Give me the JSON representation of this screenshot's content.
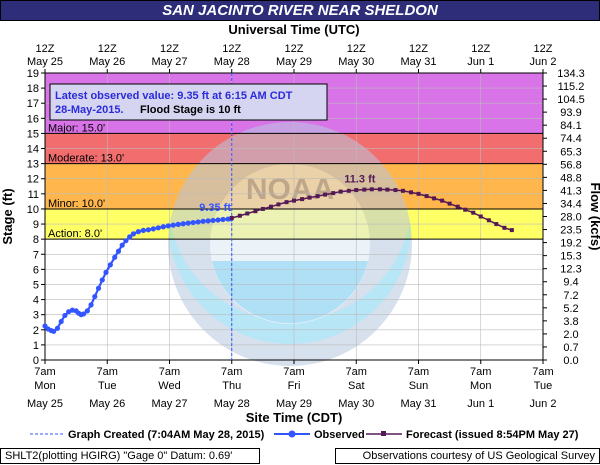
{
  "title": "SAN JACINTO RIVER NEAR SHELDON",
  "chart_data": {
    "type": "line",
    "top_axis_title": "Universal Time (UTC)",
    "bottom_axis_title": "Site Time (CDT)",
    "ylabel_left": "Stage (ft)",
    "ylabel_right": "Flow (kcfs)",
    "ylim": [
      0,
      19
    ],
    "top_ticks": [
      {
        "hour": "12Z",
        "date": "May 25"
      },
      {
        "hour": "12Z",
        "date": "May 26"
      },
      {
        "hour": "12Z",
        "date": "May 27"
      },
      {
        "hour": "12Z",
        "date": "May 28"
      },
      {
        "hour": "12Z",
        "date": "May 29"
      },
      {
        "hour": "12Z",
        "date": "May 30"
      },
      {
        "hour": "12Z",
        "date": "May 31"
      },
      {
        "hour": "12Z",
        "date": "Jun 1"
      },
      {
        "hour": "12Z",
        "date": "Jun 2"
      }
    ],
    "bottom_ticks": [
      {
        "time": "7am",
        "day": "Mon",
        "date": "May 25"
      },
      {
        "time": "7am",
        "day": "Tue",
        "date": "May 26"
      },
      {
        "time": "7am",
        "day": "Wed",
        "date": "May 27"
      },
      {
        "time": "7am",
        "day": "Thu",
        "date": "May 28"
      },
      {
        "time": "7am",
        "day": "Fri",
        "date": "May 29"
      },
      {
        "time": "7am",
        "day": "Sat",
        "date": "May 30"
      },
      {
        "time": "7am",
        "day": "Sun",
        "date": "May 31"
      },
      {
        "time": "7am",
        "day": "Mon",
        "date": "Jun 1"
      },
      {
        "time": "7am",
        "day": "Tue",
        "date": "Jun 2"
      }
    ],
    "left_ticks": [
      "0",
      "1",
      "2",
      "3",
      "4",
      "5",
      "6",
      "7",
      "8",
      "9",
      "10",
      "11",
      "12",
      "13",
      "14",
      "15",
      "16",
      "17",
      "18",
      "19"
    ],
    "right_ticks": [
      "0.0",
      "0.7",
      "2.0",
      "3.8",
      "5.2",
      "7.2",
      "9.4",
      "12.3",
      "15.3",
      "19.2",
      "23.5",
      "28.0",
      "34.4",
      "41.3",
      "48.8",
      "56.8",
      "65.3",
      "74.4",
      "84.1",
      "93.9",
      "104.5",
      "115.2",
      "134.3"
    ],
    "flood_categories": [
      {
        "label": "Action: 8.0'",
        "from": 8,
        "to": 10,
        "color": "#ffff66"
      },
      {
        "label": "Minor: 10.0'",
        "from": 10,
        "to": 13,
        "color": "#ffb74d"
      },
      {
        "label": "Moderate: 13.0'",
        "from": 13,
        "to": 15,
        "color": "#f26d6d"
      },
      {
        "label": "Major: 15.0'",
        "from": 15,
        "to": 19,
        "color": "#d973e8"
      }
    ],
    "info_box": {
      "line1": "Latest observed value: 9.35 ft at 6:15 AM CDT",
      "line2_date": "28-May-2015.",
      "line2_flood": "Flood Stage is 10 ft"
    },
    "annotations": {
      "observed_last": "9.35 ft",
      "forecast_peak": "11.3 ft"
    },
    "graph_created_day": 3.0,
    "series": [
      {
        "name": "Observed",
        "color": "#3355ff",
        "points": [
          [
            0.0,
            2.25
          ],
          [
            0.05,
            2.05
          ],
          [
            0.1,
            1.95
          ],
          [
            0.14,
            1.9
          ],
          [
            0.2,
            2.1
          ],
          [
            0.26,
            2.55
          ],
          [
            0.32,
            2.95
          ],
          [
            0.38,
            3.2
          ],
          [
            0.44,
            3.3
          ],
          [
            0.5,
            3.25
          ],
          [
            0.54,
            3.1
          ],
          [
            0.58,
            3.0
          ],
          [
            0.62,
            3.05
          ],
          [
            0.68,
            3.25
          ],
          [
            0.74,
            3.65
          ],
          [
            0.8,
            4.2
          ],
          [
            0.86,
            4.75
          ],
          [
            0.92,
            5.3
          ],
          [
            0.98,
            5.8
          ],
          [
            1.05,
            6.3
          ],
          [
            1.12,
            6.8
          ],
          [
            1.18,
            7.2
          ],
          [
            1.24,
            7.6
          ],
          [
            1.3,
            7.9
          ],
          [
            1.36,
            8.15
          ],
          [
            1.42,
            8.35
          ],
          [
            1.5,
            8.5
          ],
          [
            1.58,
            8.58
          ],
          [
            1.66,
            8.62
          ],
          [
            1.74,
            8.68
          ],
          [
            1.82,
            8.75
          ],
          [
            1.9,
            8.82
          ],
          [
            1.98,
            8.88
          ],
          [
            2.06,
            8.93
          ],
          [
            2.14,
            8.98
          ],
          [
            2.22,
            9.02
          ],
          [
            2.3,
            9.06
          ],
          [
            2.38,
            9.1
          ],
          [
            2.46,
            9.14
          ],
          [
            2.54,
            9.18
          ],
          [
            2.62,
            9.21
          ],
          [
            2.7,
            9.24
          ],
          [
            2.78,
            9.27
          ],
          [
            2.86,
            9.3
          ],
          [
            2.94,
            9.33
          ],
          [
            2.99,
            9.35
          ]
        ]
      },
      {
        "name": "Forecast (issued 8:54PM May 27)",
        "color": "#551a55",
        "points": [
          [
            3.0,
            9.4
          ],
          [
            3.13,
            9.55
          ],
          [
            3.25,
            9.7
          ],
          [
            3.38,
            9.85
          ],
          [
            3.5,
            10.0
          ],
          [
            3.63,
            10.15
          ],
          [
            3.75,
            10.3
          ],
          [
            3.88,
            10.45
          ],
          [
            4.0,
            10.55
          ],
          [
            4.13,
            10.65
          ],
          [
            4.25,
            10.75
          ],
          [
            4.38,
            10.85
          ],
          [
            4.5,
            10.95
          ],
          [
            4.63,
            11.05
          ],
          [
            4.75,
            11.15
          ],
          [
            4.88,
            11.2
          ],
          [
            5.0,
            11.25
          ],
          [
            5.13,
            11.28
          ],
          [
            5.25,
            11.3
          ],
          [
            5.38,
            11.3
          ],
          [
            5.5,
            11.28
          ],
          [
            5.63,
            11.25
          ],
          [
            5.75,
            11.2
          ],
          [
            5.88,
            11.1
          ],
          [
            6.0,
            11.0
          ],
          [
            6.13,
            10.85
          ],
          [
            6.25,
            10.7
          ],
          [
            6.38,
            10.55
          ],
          [
            6.5,
            10.35
          ],
          [
            6.63,
            10.15
          ],
          [
            6.75,
            9.95
          ],
          [
            6.88,
            9.75
          ],
          [
            7.0,
            9.5
          ],
          [
            7.13,
            9.25
          ],
          [
            7.25,
            9.0
          ],
          [
            7.38,
            8.75
          ],
          [
            7.5,
            8.6
          ]
        ]
      }
    ]
  },
  "legend": {
    "graph_created": "Graph Created (7:04AM May 28, 2015)",
    "observed": "Observed",
    "forecast": "Forecast (issued 8:54PM May 27)"
  },
  "footer": {
    "left": "SHLT2(plotting HGIRG) \"Gage 0\" Datum: 0.69'",
    "right": "Observations courtesy of US Geological Survey"
  },
  "colors": {
    "title_bg": "#2d2d7a",
    "plot_bg": "#ffffff",
    "observed": "#3355ff",
    "forecast": "#551a55",
    "info_text": "#2b2bd9"
  }
}
